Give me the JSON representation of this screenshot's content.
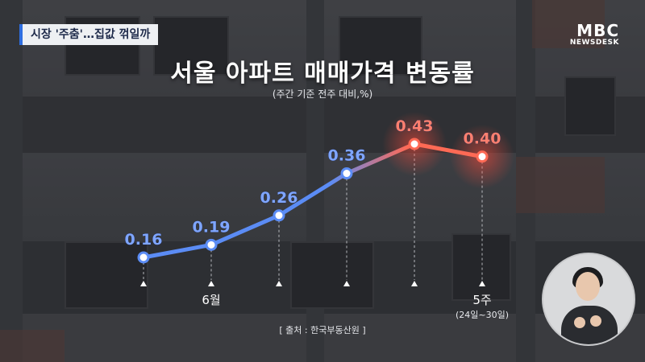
{
  "news": {
    "caption": "시장 '주춤'…집값 꺾일까",
    "logo_main": "MBC",
    "logo_sub": "NEWSDESK"
  },
  "colors": {
    "rising": "#5b8cf5",
    "peak": "#ff6a55",
    "text_rising": "#7fa6ff",
    "text_peak": "#ff7f6e"
  },
  "chart_data": {
    "type": "line",
    "title": "서울 아파트 매매가격 변동률",
    "subtitle": "(주간 기준 전주 대비,%)",
    "unit": "%",
    "x_labels": [
      "",
      "6월",
      "",
      "",
      "",
      "5주"
    ],
    "x_sublabels": [
      "",
      "",
      "",
      "",
      "",
      "(24일~30일)"
    ],
    "values": [
      0.16,
      0.19,
      0.26,
      0.36,
      0.43,
      0.4
    ],
    "data_labels": [
      "0.16",
      "0.19",
      "0.26",
      "0.36",
      "0.43",
      "0.40"
    ],
    "source": "[ 출처 : 한국부동산원 ]",
    "grid": false,
    "legend": "none"
  }
}
